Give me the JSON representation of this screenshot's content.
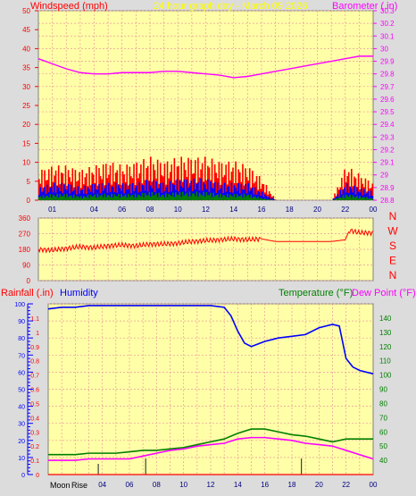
{
  "header": {
    "left_label": "Windspeed (mph)",
    "center_label": "24 hour graph day - March 09 2026",
    "right_label": "Barometer (.in)"
  },
  "colors": {
    "background": "#dcdcdc",
    "plot": "#ffffa8",
    "grid": "#e89a9a",
    "wind": "#ff0000",
    "avg_wind": "#0000ff",
    "low_wind": "#008000",
    "barometer": "#ff00ff",
    "direction": "#ff0000",
    "humidity": "#0000ff",
    "temperature": "#008000",
    "dewpoint": "#ff00ff",
    "rainfall": "#ff0000"
  },
  "chart_data": [
    {
      "type": "line",
      "panel": "wind-barometer",
      "x_ticks": [
        "01",
        "04",
        "06",
        "08",
        "10",
        "12",
        "14",
        "16",
        "18",
        "20",
        "22",
        "00"
      ],
      "x_range_hours": [
        0,
        24
      ],
      "left_axis": {
        "label": "Windspeed (mph)",
        "range": [
          0,
          50
        ],
        "ticks": [
          "50",
          "45",
          "40",
          "35",
          "30",
          "25",
          "20",
          "15",
          "10",
          "5",
          "0"
        ]
      },
      "right_axis": {
        "label": "Barometer (.in)",
        "range": [
          28.8,
          30.3
        ],
        "ticks": [
          "30.3",
          "30.2",
          "30.1",
          "30",
          "29.9",
          "29.8",
          "29.7",
          "29.6",
          "29.5",
          "29.4",
          "29.3",
          "29.2",
          "29.1",
          "29",
          "28.9",
          "28.8"
        ]
      },
      "grid": true,
      "series": [
        {
          "name": "Windspeed",
          "axis": "left",
          "style": "bars",
          "x": [
            0,
            1,
            2,
            3,
            4,
            5,
            6,
            7,
            8,
            9,
            10,
            11,
            12,
            13,
            14,
            15,
            16,
            17,
            18,
            19,
            20,
            21,
            22,
            23,
            24
          ],
          "y": [
            7,
            8,
            8,
            7,
            8,
            9,
            8,
            9,
            10,
            9,
            10,
            10,
            10,
            9,
            9,
            8,
            5,
            0,
            0,
            0,
            0,
            0,
            8,
            6,
            4
          ]
        },
        {
          "name": "Avg wind",
          "axis": "left",
          "style": "bars",
          "x": [
            0,
            1,
            2,
            3,
            4,
            5,
            6,
            7,
            8,
            9,
            10,
            11,
            12,
            13,
            14,
            15,
            16,
            17,
            18,
            19,
            20,
            21,
            22,
            23,
            24
          ],
          "y": [
            3,
            4,
            4,
            3,
            4,
            4,
            4,
            4,
            5,
            4,
            5,
            5,
            5,
            4,
            4,
            4,
            2,
            0,
            0,
            0,
            0,
            0,
            4,
            3,
            2
          ]
        },
        {
          "name": "Low wind",
          "axis": "left",
          "style": "bars",
          "x": [
            0,
            1,
            2,
            3,
            4,
            5,
            6,
            7,
            8,
            9,
            10,
            11,
            12,
            13,
            14,
            15,
            16,
            17,
            18,
            19,
            20,
            21,
            22,
            23,
            24
          ],
          "y": [
            1,
            1.5,
            1.5,
            1,
            1.5,
            1.5,
            1.5,
            1.5,
            2,
            1.5,
            2,
            2,
            2,
            1.5,
            1.5,
            1.5,
            0.5,
            0,
            0,
            0,
            0,
            0,
            1.5,
            1,
            0.5
          ]
        },
        {
          "name": "Barometer",
          "axis": "right",
          "x": [
            0,
            1,
            2,
            3,
            4,
            5,
            6,
            7,
            8,
            9,
            10,
            11,
            12,
            13,
            14,
            15,
            16,
            17,
            18,
            19,
            20,
            21,
            22,
            23,
            24
          ],
          "y": [
            29.92,
            29.88,
            29.84,
            29.81,
            29.8,
            29.8,
            29.81,
            29.81,
            29.81,
            29.82,
            29.82,
            29.81,
            29.8,
            29.79,
            29.77,
            29.78,
            29.8,
            29.82,
            29.84,
            29.86,
            29.88,
            29.9,
            29.92,
            29.94,
            29.94
          ]
        }
      ]
    },
    {
      "type": "line",
      "panel": "wind-direction",
      "x_range_hours": [
        0,
        24
      ],
      "left_axis": {
        "range": [
          0,
          360
        ],
        "ticks": [
          "360",
          "270",
          "180",
          "90",
          "0"
        ]
      },
      "right_labels": [
        "N",
        "W",
        "S",
        "E",
        "N"
      ],
      "grid": true,
      "series": [
        {
          "name": "Wind direction",
          "axis": "left",
          "x": [
            0,
            1,
            2,
            3,
            4,
            5,
            6,
            7,
            8,
            9,
            10,
            11,
            12,
            13,
            14,
            15,
            16,
            17,
            18,
            19,
            20,
            21,
            22,
            22.3,
            23,
            24
          ],
          "y": [
            180,
            175,
            185,
            195,
            190,
            200,
            205,
            200,
            210,
            210,
            215,
            225,
            230,
            235,
            240,
            235,
            240,
            225,
            225,
            225,
            225,
            225,
            235,
            290,
            275,
            275
          ]
        }
      ]
    },
    {
      "type": "line",
      "panel": "rain-humidity-temperature",
      "x_ticks": [
        "04",
        "06",
        "08",
        "10",
        "12",
        "14",
        "16",
        "18",
        "20",
        "22",
        "00"
      ],
      "x_range_hours": [
        0,
        24
      ],
      "rainfall_axis": {
        "label": "Rainfall (.in)",
        "range": [
          0,
          1.2
        ],
        "ticks": [
          "1.1",
          "1",
          "0.9",
          "0.8",
          "0.7",
          "0.6",
          "0.5",
          "0.4",
          "0.3",
          "0.2",
          "0.1",
          "0"
        ]
      },
      "humidity_axis": {
        "label": "Humidity",
        "range": [
          0,
          100
        ],
        "ticks": [
          "100",
          "90",
          "80",
          "70",
          "60",
          "50",
          "40",
          "30",
          "20",
          "10",
          "0"
        ]
      },
      "temperature_axis": {
        "label": "Temperature (°F)",
        "label2": "Dew Point (°F)",
        "range": [
          30,
          150
        ],
        "ticks": [
          "140",
          "130",
          "120",
          "110",
          "100",
          "90",
          "80",
          "70",
          "60",
          "50",
          "40"
        ]
      },
      "moon_labels": [
        "Moon",
        "Rise"
      ],
      "grid": true,
      "series": [
        {
          "name": "Humidity",
          "axis": "humidity",
          "x": [
            0,
            1,
            2,
            3,
            4,
            5,
            6,
            7,
            8,
            9,
            10,
            11,
            12,
            13,
            13.5,
            14,
            14.5,
            15,
            16,
            17,
            18,
            19,
            20,
            21,
            21.5,
            22,
            22.5,
            23,
            24
          ],
          "y": [
            97,
            98,
            98,
            99,
            99,
            99,
            99,
            99,
            99,
            99,
            99,
            99,
            99,
            98,
            93,
            84,
            77,
            75,
            78,
            80,
            81,
            82,
            86,
            88,
            87,
            68,
            63,
            61,
            59
          ]
        },
        {
          "name": "Temperature",
          "axis": "temperature",
          "x": [
            0,
            1,
            2,
            3,
            4,
            5,
            6,
            7,
            8,
            9,
            10,
            11,
            12,
            13,
            14,
            15,
            16,
            17,
            18,
            19,
            20,
            21,
            22,
            23,
            24
          ],
          "y": [
            44,
            44,
            44,
            45,
            45,
            45,
            46,
            47,
            47,
            48,
            49,
            51,
            53,
            55,
            59,
            62,
            62,
            60,
            58,
            57,
            55,
            53,
            55,
            55,
            55
          ]
        },
        {
          "name": "Dew Point",
          "axis": "temperature",
          "x": [
            0,
            1,
            2,
            3,
            4,
            5,
            6,
            7,
            8,
            9,
            10,
            11,
            12,
            13,
            14,
            15,
            16,
            17,
            18,
            19,
            20,
            21,
            22,
            23,
            24
          ],
          "y": [
            40,
            40,
            40,
            41,
            41,
            41,
            41,
            43,
            45,
            47,
            48,
            50,
            51,
            52,
            55,
            56,
            56,
            55,
            54,
            52,
            51,
            50,
            47,
            44,
            41
          ]
        },
        {
          "name": "Rainfall",
          "axis": "rainfall",
          "x": [
            0,
            24
          ],
          "y": [
            0,
            0
          ]
        }
      ]
    }
  ]
}
